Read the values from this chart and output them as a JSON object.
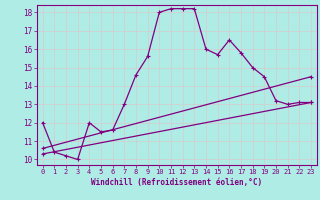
{
  "title": "",
  "xlabel": "Windchill (Refroidissement éolien,°C)",
  "background_color": "#b0ece6",
  "grid_color": "#d0d0d0",
  "line_color": "#800080",
  "xlim": [
    -0.5,
    23.5
  ],
  "ylim": [
    9.7,
    18.4
  ],
  "xticks": [
    0,
    1,
    2,
    3,
    4,
    5,
    6,
    7,
    8,
    9,
    10,
    11,
    12,
    13,
    14,
    15,
    16,
    17,
    18,
    19,
    20,
    21,
    22,
    23
  ],
  "yticks": [
    10,
    11,
    12,
    13,
    14,
    15,
    16,
    17,
    18
  ],
  "line1_x": [
    0,
    1,
    2,
    3,
    4,
    5,
    6,
    7,
    8,
    9,
    10,
    11,
    12,
    13,
    14,
    15,
    16,
    17,
    18,
    19,
    20,
    21,
    22,
    23
  ],
  "line1_y": [
    12.0,
    10.4,
    10.2,
    10.0,
    12.0,
    11.5,
    11.6,
    13.0,
    14.6,
    15.6,
    18.0,
    18.2,
    18.2,
    18.2,
    16.0,
    15.7,
    16.5,
    15.8,
    15.0,
    14.5,
    13.2,
    13.0,
    13.1,
    13.1
  ],
  "line2_x": [
    0,
    23
  ],
  "line2_y": [
    10.6,
    14.5
  ],
  "line3_x": [
    0,
    23
  ],
  "line3_y": [
    10.3,
    13.1
  ],
  "marker": "+"
}
